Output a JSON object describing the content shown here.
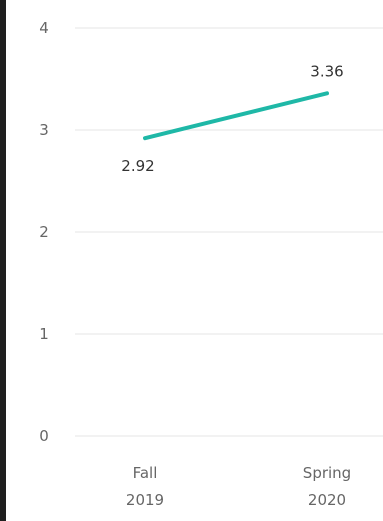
{
  "chart_data": {
    "type": "line",
    "categories": [
      "Fall\n2019",
      "Spring\n2020"
    ],
    "series": [
      {
        "values": [
          2.92,
          3.36
        ],
        "color": "#1fb8a7"
      }
    ],
    "ylim": [
      0,
      4
    ],
    "yticks": [
      0,
      1,
      2,
      3,
      4
    ],
    "grid": true,
    "data_labels": [
      "2.92",
      "3.36"
    ],
    "gridline_color": "#e6e6e6",
    "axis_text_color": "#666666"
  }
}
